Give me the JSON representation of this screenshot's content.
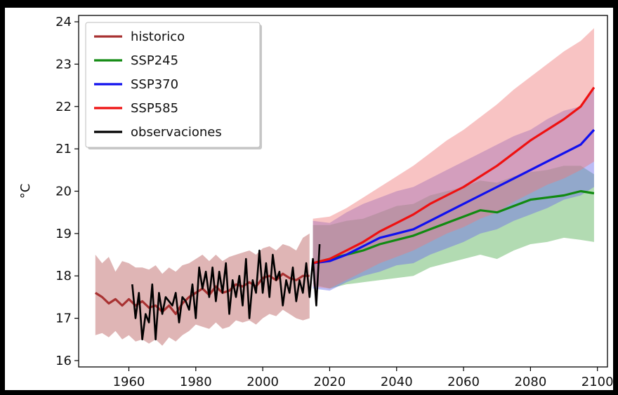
{
  "chart_data": {
    "type": "line",
    "title": "",
    "xlabel": "",
    "ylabel": "°C",
    "xlim": [
      1945,
      2103
    ],
    "ylim": [
      15.85,
      24.15
    ],
    "xticks": [
      1960,
      1980,
      2000,
      2020,
      2040,
      2060,
      2080,
      2100
    ],
    "yticks": [
      16,
      17,
      18,
      19,
      20,
      21,
      22,
      23,
      24
    ],
    "grid": false,
    "legend_position": "top-left",
    "series": [
      {
        "name": "historico",
        "color": "#a83232",
        "band_color": "#b85a5a",
        "x": [
          1950,
          1952,
          1954,
          1956,
          1958,
          1960,
          1962,
          1964,
          1966,
          1968,
          1970,
          1972,
          1974,
          1976,
          1978,
          1980,
          1982,
          1984,
          1986,
          1988,
          1990,
          1992,
          1994,
          1996,
          1998,
          2000,
          2002,
          2004,
          2006,
          2008,
          2010,
          2012,
          2014
        ],
        "values": [
          17.6,
          17.5,
          17.35,
          17.45,
          17.3,
          17.45,
          17.3,
          17.4,
          17.25,
          17.3,
          17.15,
          17.3,
          17.1,
          17.35,
          17.5,
          17.6,
          17.7,
          17.55,
          17.75,
          17.6,
          17.65,
          17.8,
          17.75,
          17.85,
          17.75,
          17.95,
          18.0,
          17.9,
          18.05,
          17.95,
          17.9,
          18.0,
          18.0
        ],
        "lower": [
          16.6,
          16.65,
          16.55,
          16.7,
          16.5,
          16.6,
          16.45,
          16.5,
          16.4,
          16.5,
          16.35,
          16.55,
          16.45,
          16.6,
          16.7,
          16.85,
          16.8,
          16.75,
          16.9,
          16.75,
          16.8,
          16.95,
          16.9,
          16.95,
          16.85,
          17.0,
          17.1,
          17.05,
          17.2,
          17.1,
          17.0,
          16.95,
          17.0
        ],
        "upper": [
          18.5,
          18.3,
          18.45,
          18.1,
          18.35,
          18.3,
          18.2,
          18.2,
          18.15,
          18.25,
          18.05,
          18.2,
          18.1,
          18.25,
          18.3,
          18.4,
          18.5,
          18.35,
          18.5,
          18.35,
          18.45,
          18.5,
          18.55,
          18.6,
          18.5,
          18.65,
          18.7,
          18.6,
          18.75,
          18.7,
          18.6,
          18.9,
          19.0
        ]
      },
      {
        "name": "SSP245",
        "color": "#118a11",
        "band_color": "#55b055",
        "x": [
          2015,
          2020,
          2025,
          2030,
          2035,
          2040,
          2045,
          2050,
          2055,
          2060,
          2065,
          2070,
          2075,
          2080,
          2085,
          2090,
          2095,
          2099
        ],
        "values": [
          18.3,
          18.4,
          18.5,
          18.6,
          18.75,
          18.85,
          18.95,
          19.1,
          19.25,
          19.4,
          19.55,
          19.5,
          19.65,
          19.8,
          19.85,
          19.9,
          20.0,
          19.95
        ],
        "lower": [
          17.8,
          17.7,
          17.8,
          17.85,
          17.9,
          17.95,
          18.0,
          18.2,
          18.3,
          18.4,
          18.5,
          18.4,
          18.6,
          18.75,
          18.8,
          18.9,
          18.85,
          18.8
        ],
        "upper": [
          19.2,
          19.2,
          19.3,
          19.35,
          19.5,
          19.65,
          19.7,
          19.9,
          20.0,
          20.1,
          20.25,
          20.2,
          20.35,
          20.45,
          20.5,
          20.6,
          20.6,
          20.4
        ]
      },
      {
        "name": "SSP370",
        "color": "#1010ee",
        "band_color": "#6a6ae8",
        "x": [
          2015,
          2020,
          2025,
          2030,
          2035,
          2040,
          2045,
          2050,
          2055,
          2060,
          2065,
          2070,
          2075,
          2080,
          2085,
          2090,
          2095,
          2099
        ],
        "values": [
          18.3,
          18.35,
          18.5,
          18.7,
          18.9,
          19.0,
          19.1,
          19.3,
          19.5,
          19.7,
          19.9,
          20.1,
          20.3,
          20.5,
          20.7,
          20.9,
          21.1,
          21.45
        ],
        "lower": [
          17.7,
          17.65,
          17.85,
          18.0,
          18.1,
          18.25,
          18.3,
          18.5,
          18.65,
          18.8,
          19.0,
          19.1,
          19.3,
          19.45,
          19.6,
          19.8,
          19.9,
          20.1
        ],
        "upper": [
          19.3,
          19.25,
          19.5,
          19.7,
          19.85,
          20.0,
          20.1,
          20.3,
          20.5,
          20.7,
          20.9,
          21.1,
          21.3,
          21.45,
          21.7,
          21.9,
          22.0,
          22.4
        ]
      },
      {
        "name": "SSP585",
        "color": "#ee1111",
        "band_color": "#f07a7a",
        "x": [
          2015,
          2020,
          2025,
          2030,
          2035,
          2040,
          2045,
          2050,
          2055,
          2060,
          2065,
          2070,
          2075,
          2080,
          2085,
          2090,
          2095,
          2099
        ],
        "values": [
          18.3,
          18.4,
          18.6,
          18.8,
          19.05,
          19.25,
          19.45,
          19.7,
          19.9,
          20.1,
          20.35,
          20.6,
          20.9,
          21.2,
          21.45,
          21.7,
          22.0,
          22.45
        ],
        "lower": [
          17.75,
          17.7,
          17.9,
          18.1,
          18.3,
          18.45,
          18.6,
          18.8,
          19.0,
          19.15,
          19.35,
          19.5,
          19.75,
          19.95,
          20.15,
          20.3,
          20.5,
          20.7
        ],
        "upper": [
          19.35,
          19.4,
          19.6,
          19.85,
          20.1,
          20.35,
          20.6,
          20.9,
          21.2,
          21.45,
          21.75,
          22.05,
          22.4,
          22.7,
          23.0,
          23.3,
          23.55,
          23.85
        ]
      },
      {
        "name": "observaciones",
        "color": "#000000",
        "x": [
          1961,
          1962,
          1963,
          1964,
          1965,
          1966,
          1967,
          1968,
          1969,
          1970,
          1971,
          1972,
          1973,
          1974,
          1975,
          1976,
          1977,
          1978,
          1979,
          1980,
          1981,
          1982,
          1983,
          1984,
          1985,
          1986,
          1987,
          1988,
          1989,
          1990,
          1991,
          1992,
          1993,
          1994,
          1995,
          1996,
          1997,
          1998,
          1999,
          2000,
          2001,
          2002,
          2003,
          2004,
          2005,
          2006,
          2007,
          2008,
          2009,
          2010,
          2011,
          2012,
          2013,
          2014,
          2015,
          2016,
          2017
        ],
        "values": [
          17.8,
          17.0,
          17.6,
          16.5,
          17.1,
          16.9,
          17.8,
          16.5,
          17.6,
          17.1,
          17.5,
          17.4,
          17.3,
          17.6,
          16.9,
          17.5,
          17.4,
          17.2,
          17.8,
          17.0,
          18.2,
          17.7,
          18.1,
          17.5,
          18.2,
          17.4,
          18.1,
          17.6,
          18.3,
          17.1,
          17.9,
          17.5,
          18.0,
          17.3,
          18.4,
          17.0,
          17.9,
          17.6,
          18.6,
          17.6,
          18.3,
          17.5,
          18.5,
          17.9,
          18.1,
          17.3,
          17.9,
          17.6,
          18.2,
          17.4,
          17.9,
          17.6,
          18.3,
          17.5,
          18.4,
          17.3,
          18.75
        ]
      }
    ]
  }
}
